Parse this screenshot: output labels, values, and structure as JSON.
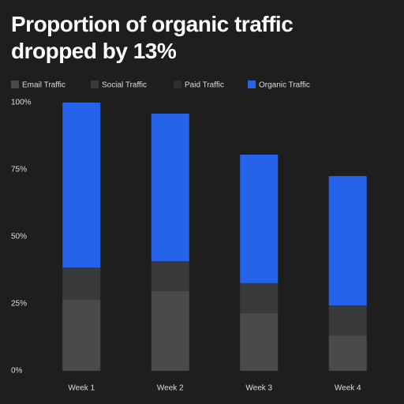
{
  "chart_data": {
    "type": "stacked_bar",
    "title": "Proportion of organic traffic dropped by 13%",
    "categories": [
      "Week 1",
      "Week 2",
      "Week 3",
      "Week 4"
    ],
    "series": [
      {
        "name": "Email Traffic",
        "color": "#4a4a4a",
        "values": [
          26.5,
          29.7,
          21.5,
          13.2
        ]
      },
      {
        "name": "Social Traffic",
        "color": "#3a3a3a",
        "values": [
          12,
          11.2,
          11.2,
          11.2
        ]
      },
      {
        "name": "Paid Traffic",
        "color": "#2e2e2e",
        "values": [
          0,
          0,
          0,
          0
        ]
      },
      {
        "name": "Organic Traffic",
        "color": "#2563eb",
        "values": [
          61.5,
          55,
          47.9,
          48.2
        ]
      }
    ],
    "ylim": [
      0,
      100
    ],
    "yticks": [
      {
        "value": 0,
        "label": "0%"
      },
      {
        "value": 25,
        "label": "25%"
      },
      {
        "value": 50,
        "label": "50%"
      },
      {
        "value": 75,
        "label": "75%"
      },
      {
        "value": 100,
        "label": "100%"
      }
    ],
    "legend": "top-left"
  }
}
